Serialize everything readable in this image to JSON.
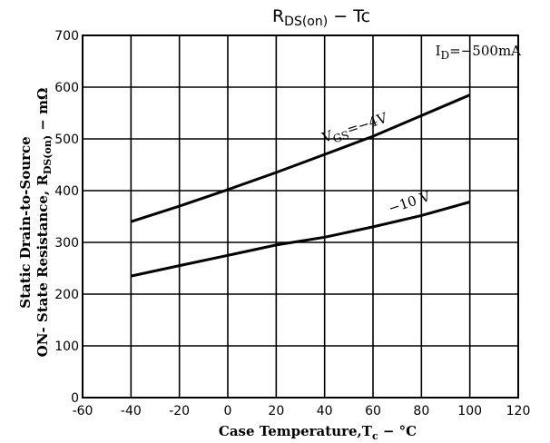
{
  "chart_data": {
    "type": "line",
    "title": "R DS(on) − Tc",
    "title_main": "R",
    "title_sub": "DS(on)",
    "title_rest": " − Tc",
    "xlabel": "Case Temperature,Tс − °C",
    "xlabel_main": "Case Temperature,T",
    "xlabel_sub": "c",
    "xlabel_rest": " − °C",
    "ylabel_line1": "Static Drain-to-Source",
    "ylabel_line2_main": "ON- State Resistance, R",
    "ylabel_line2_sub": "DS(on)",
    "ylabel_line2_rest": " − mΩ",
    "xlim": [
      -60,
      120
    ],
    "ylim": [
      0,
      700
    ],
    "x_ticks": [
      "-60",
      "-40",
      "-20",
      "0",
      "20",
      "40",
      "60",
      "80",
      "100",
      "120"
    ],
    "y_ticks": [
      "0",
      "100",
      "200",
      "300",
      "400",
      "500",
      "600",
      "700"
    ],
    "grid": true,
    "condition_main": "I",
    "condition_sub": "D",
    "condition_rest": "=−500mA",
    "series": [
      {
        "name": "VGS=−4V",
        "label_main": "V",
        "label_sub": "GS",
        "label_rest": "=−4V",
        "x": [
          -40,
          -20,
          0,
          20,
          40,
          60,
          80,
          100
        ],
        "values": [
          340,
          370,
          402,
          435,
          470,
          505,
          545,
          585
        ]
      },
      {
        "name": "−10 V",
        "label_main": "−10 V",
        "x": [
          -40,
          -20,
          0,
          20,
          40,
          60,
          80,
          100
        ],
        "values": [
          235,
          255,
          275,
          295,
          310,
          330,
          352,
          378
        ]
      }
    ]
  }
}
